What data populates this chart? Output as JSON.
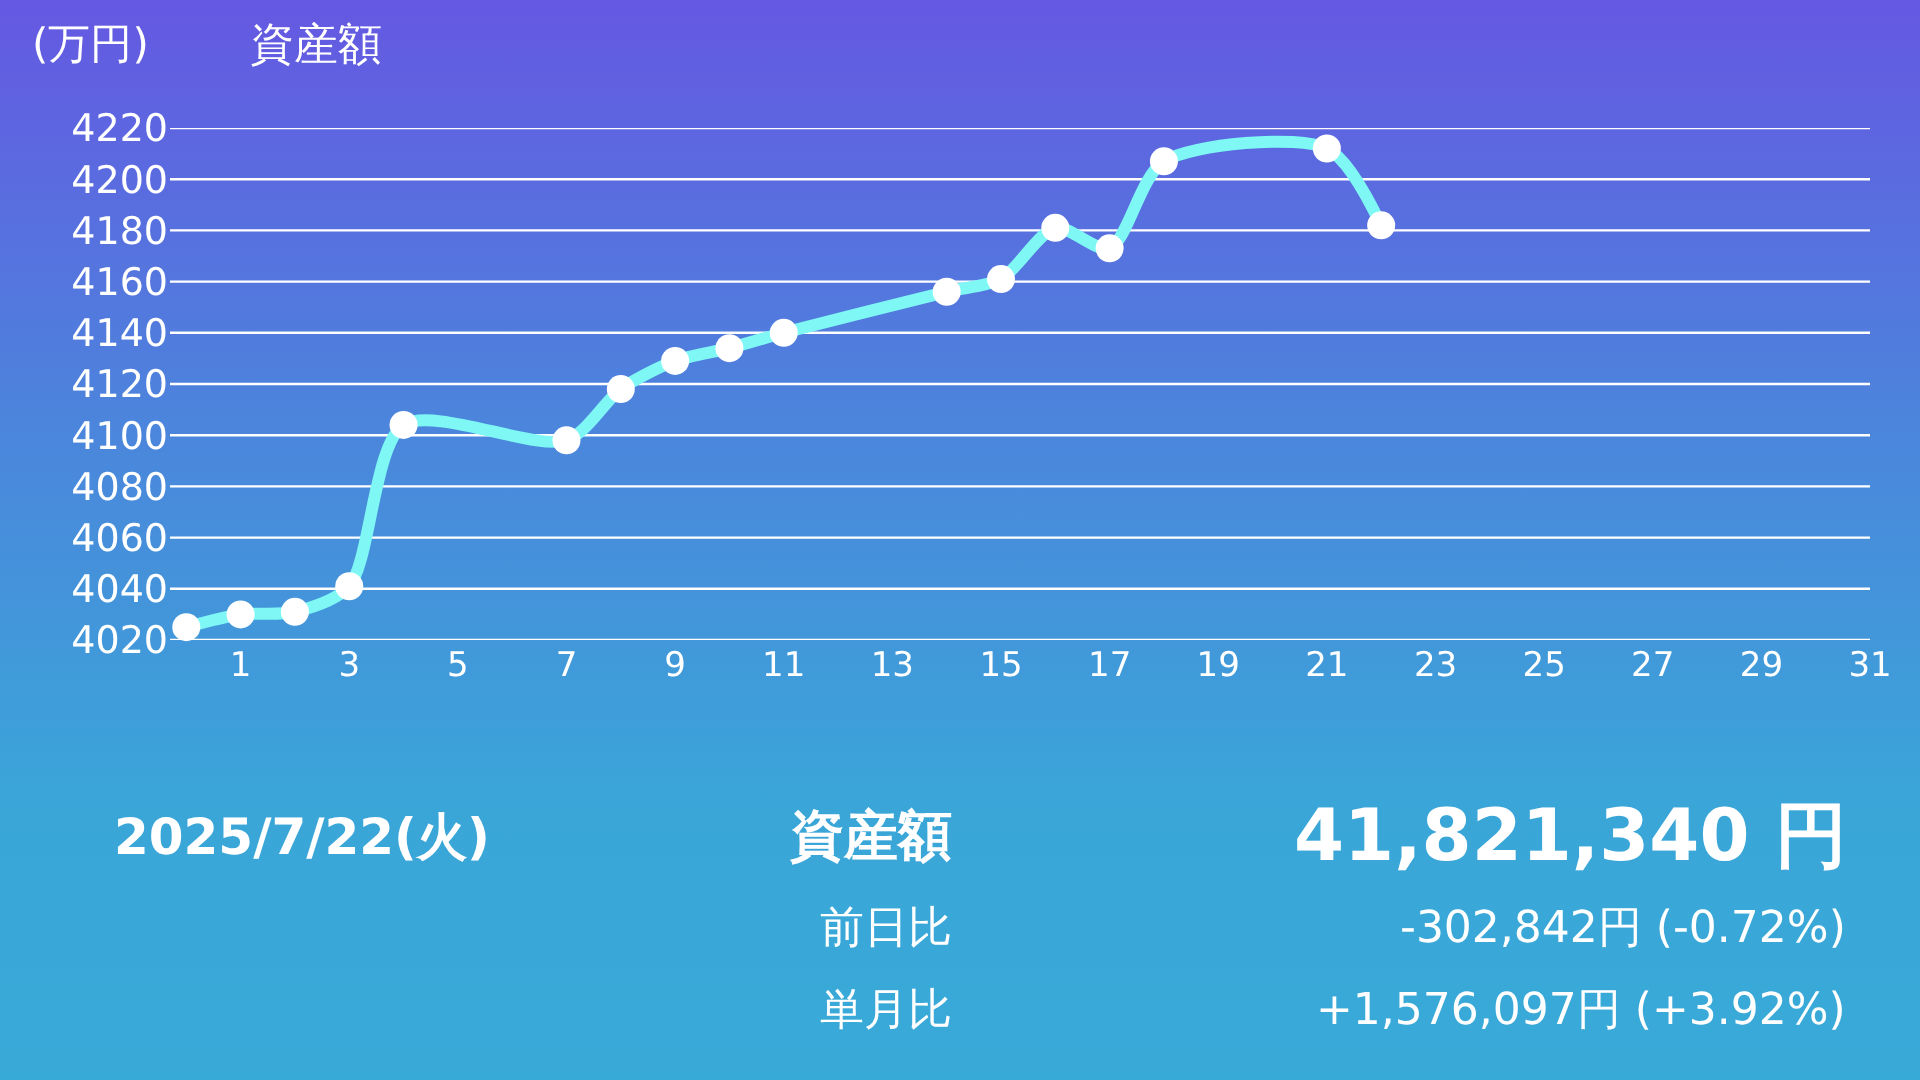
{
  "chart_data": {
    "type": "line",
    "title": "資産額",
    "ylabel": "(万円)",
    "x": [
      0,
      1,
      2,
      3,
      4,
      7,
      8,
      9,
      10,
      11,
      14,
      15,
      16,
      17,
      18,
      21,
      22
    ],
    "series": [
      {
        "color": "#7ff7f4",
        "values": [
          4025,
          4030,
          4031,
          4041,
          4104,
          4098,
          4118,
          4129,
          4134,
          4140,
          4156,
          4161,
          4181,
          4173,
          4207,
          4212,
          4182
        ]
      }
    ],
    "xlim": [
      -0.3,
      31
    ],
    "xticks": [
      1,
      3,
      5,
      7,
      9,
      11,
      13,
      15,
      17,
      19,
      21,
      23,
      25,
      27,
      29,
      31
    ],
    "ylim": [
      4020,
      4220
    ],
    "yticks": [
      4020,
      4040,
      4060,
      4080,
      4100,
      4120,
      4140,
      4160,
      4180,
      4200,
      4220
    ],
    "grid": "y",
    "marker": "circle",
    "line_style": "solid",
    "annotations": [
      "2025/7/22(火)",
      "資産額",
      "41,821,340 円",
      "前日比",
      "-302,842円 (-0.72%)",
      "単月比",
      "+1,576,097円 (+3.92%)"
    ]
  }
}
